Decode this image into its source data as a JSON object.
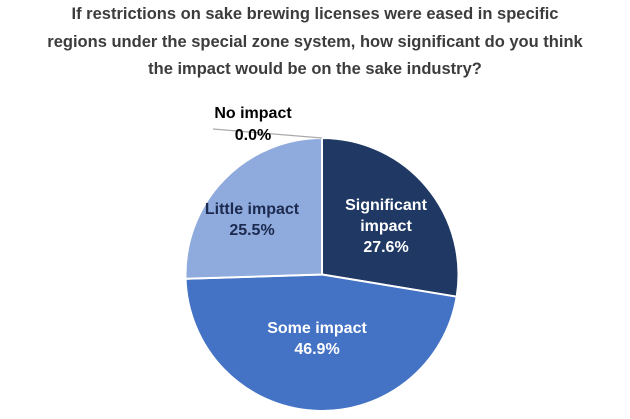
{
  "page": {
    "background_color": "#FFFFFF"
  },
  "title": {
    "lines": [
      "If restrictions on sake brewing licenses were eased in specific",
      "regions under the special zone system, how significant do you think",
      "the impact would be on the sake industry?"
    ],
    "color": "#3C3C3C"
  },
  "chart_data": {
    "type": "pie",
    "title": "If restrictions on sake brewing licenses were eased in specific regions under the special zone system, how significant do you think the impact would be on the sake industry?",
    "start_angle_deg": 0,
    "direction": "clockwise",
    "legend": "none",
    "categories": [
      "Significant impact",
      "Some impact",
      "Little impact",
      "No impact"
    ],
    "values": [
      27.6,
      46.9,
      25.5,
      0.0
    ],
    "slices": [
      {
        "label": "Significant impact",
        "label_lines": [
          "Significant",
          "impact"
        ],
        "value": 27.6,
        "pct_label": "27.6%",
        "color": "#1F3864",
        "text_color": "#FFFFFF",
        "label_placement": "inside"
      },
      {
        "label": "Some impact",
        "label_lines": [
          "Some impact"
        ],
        "value": 46.9,
        "pct_label": "46.9%",
        "color": "#4472C4",
        "text_color": "#FFFFFF",
        "label_placement": "inside"
      },
      {
        "label": "Little impact",
        "label_lines": [
          "Little impact"
        ],
        "value": 25.5,
        "pct_label": "25.5%",
        "color": "#8FAADC",
        "text_color": "#1B2A4E",
        "label_placement": "inside"
      },
      {
        "label": "No impact",
        "label_lines": [
          "No impact"
        ],
        "value": 0.0,
        "pct_label": "0.0%",
        "color": "#8FAADC",
        "text_color": "#000000",
        "label_placement": "outside"
      }
    ],
    "slice_border_color": "#FFFFFF",
    "leader_line_color": "#AAAAAA"
  }
}
